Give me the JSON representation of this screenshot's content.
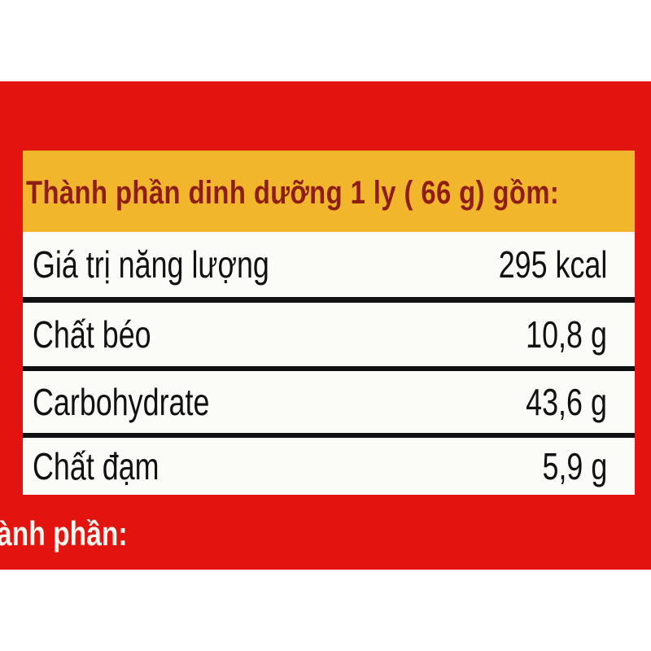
{
  "colors": {
    "packaging_red": "#e3140f",
    "header_yellow": "#f2b62c",
    "header_text": "#8e1d12"
  },
  "nutrition": {
    "title": "Thành phần dinh dưỡng 1 ly ( 66 g) gồm:",
    "rows": [
      {
        "label": "Giá trị năng lượng",
        "value": "295 kcal"
      },
      {
        "label": "Chất béo",
        "value": "10,8 g"
      },
      {
        "label": "Carbohydrate",
        "value": "43,6 g"
      },
      {
        "label": "Chất đạm",
        "value": "5,9 g"
      }
    ]
  },
  "ingredients_heading": "ành phần:"
}
